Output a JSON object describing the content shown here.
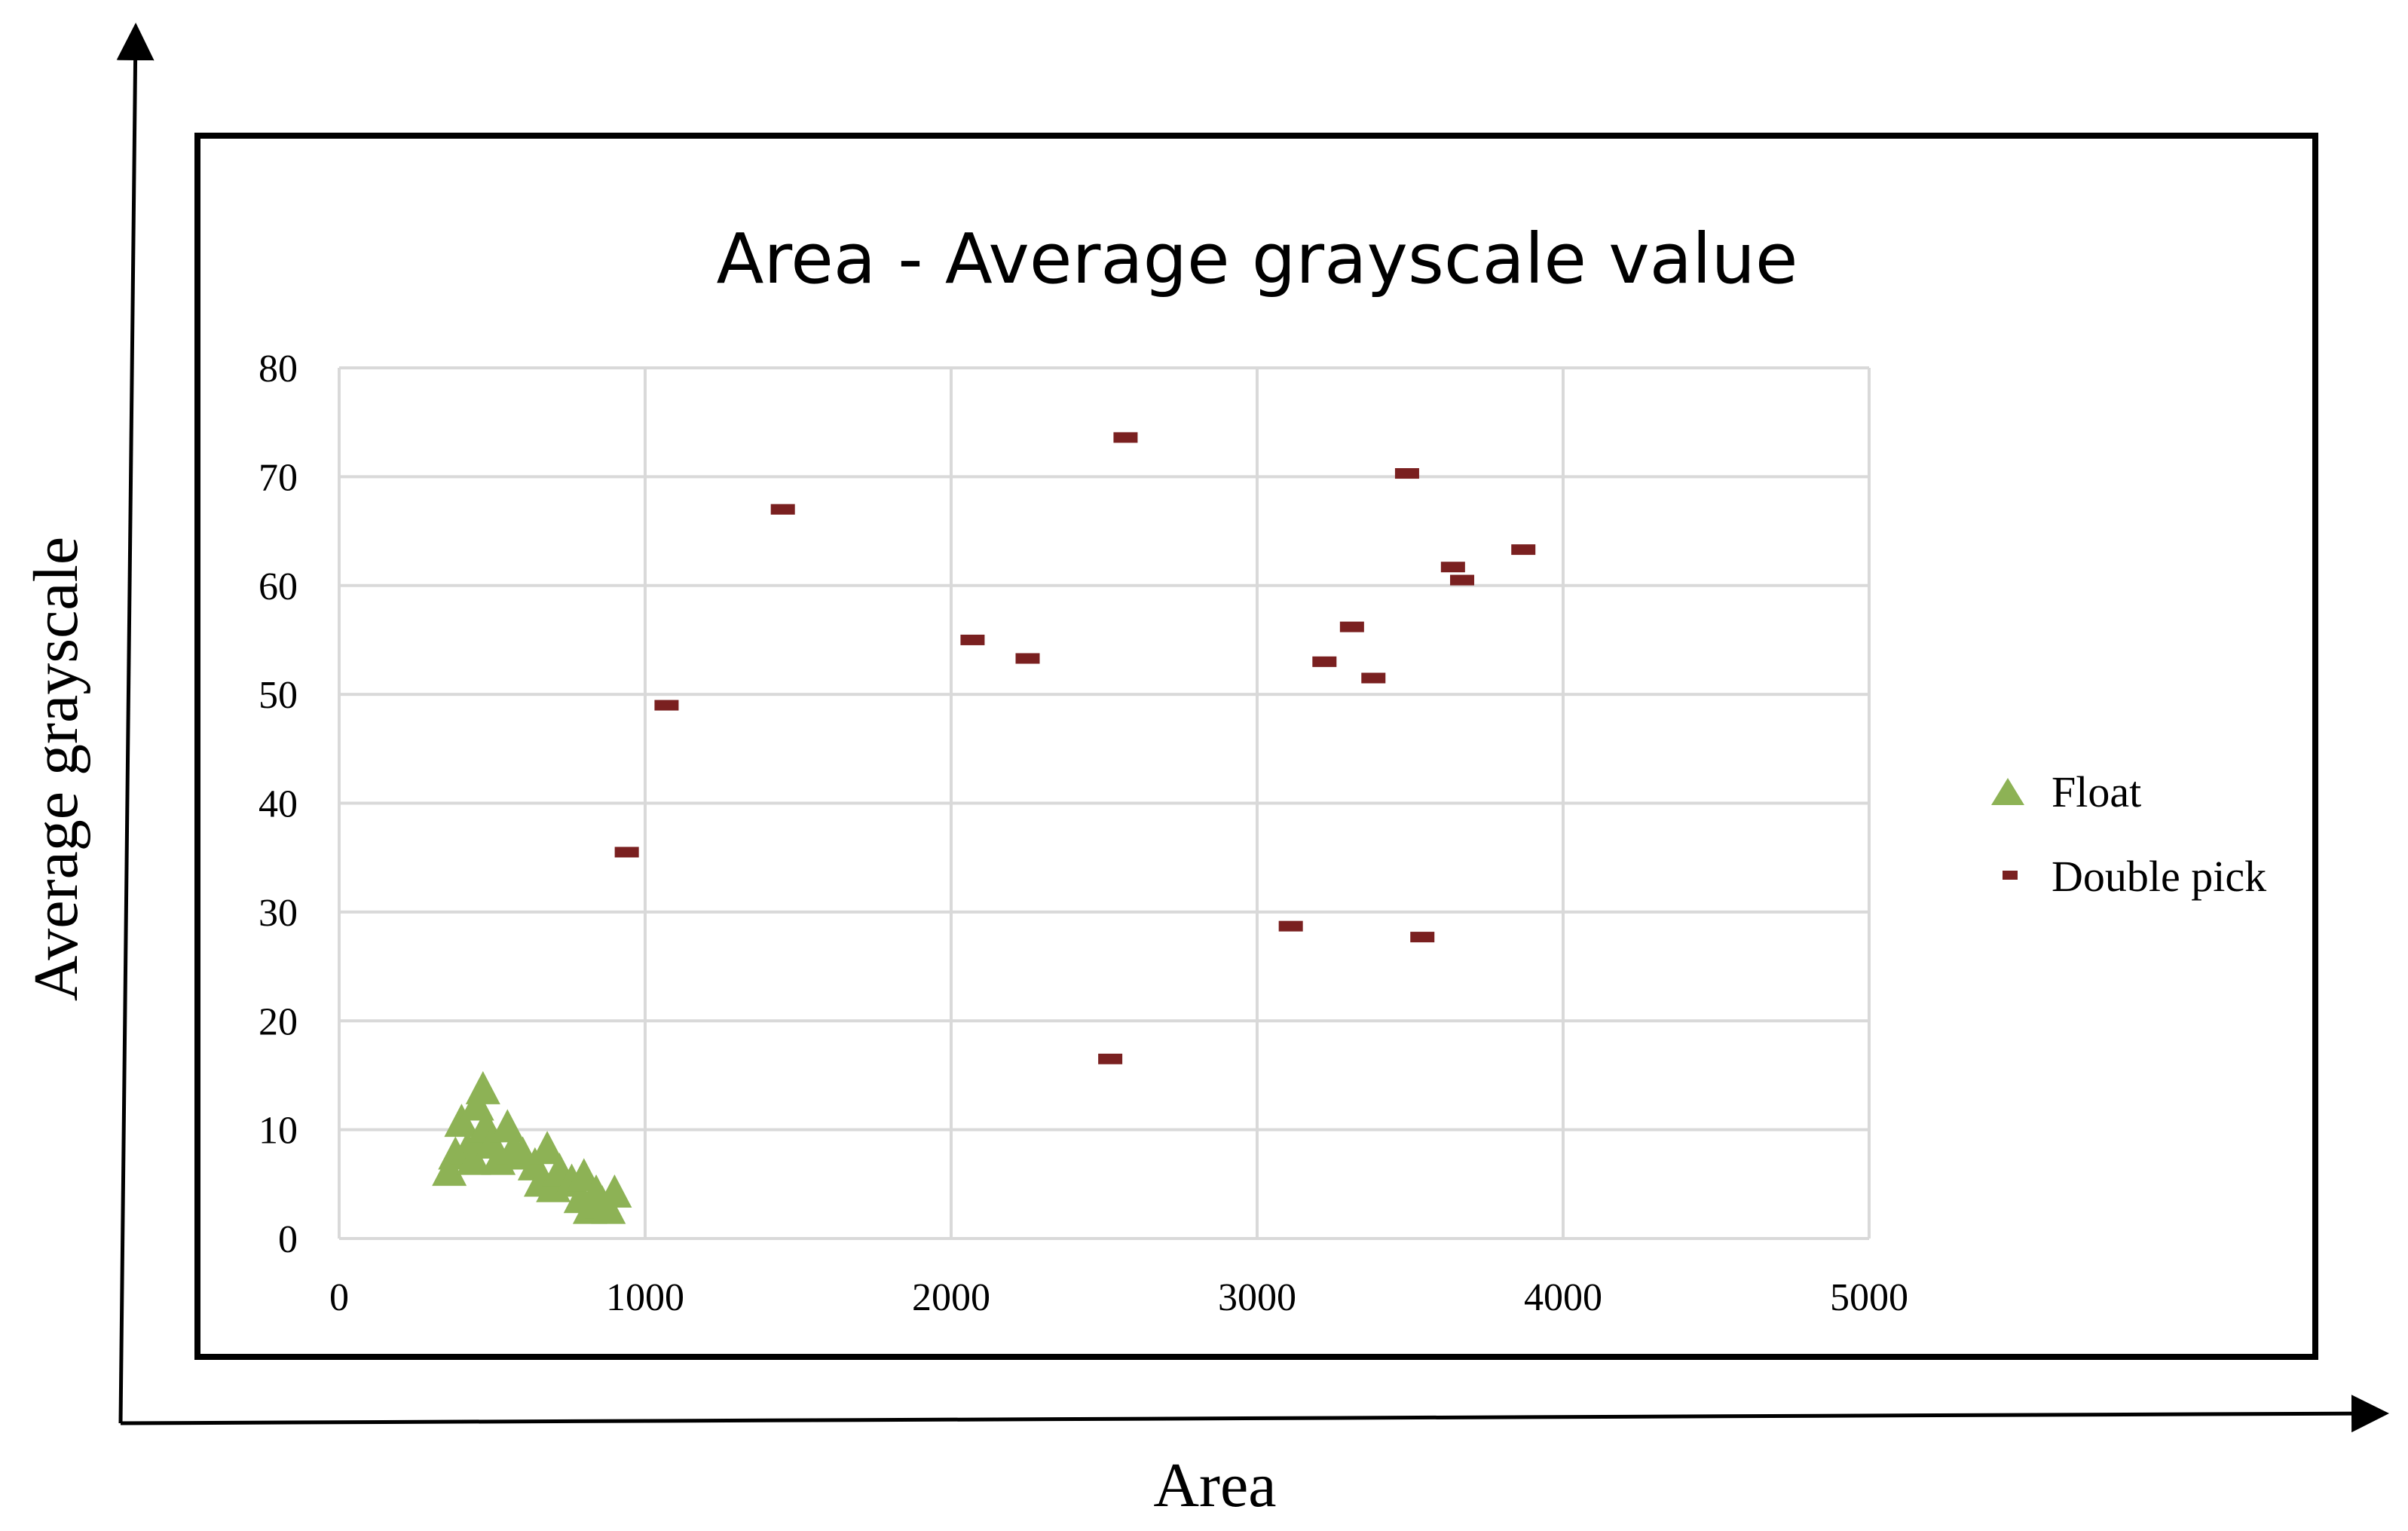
{
  "chart_data": {
    "type": "scatter",
    "title": "Area - Average grayscale value",
    "xlabel": "Area",
    "ylabel": "Average grayscale",
    "xlim": [
      0,
      5000
    ],
    "ylim": [
      0,
      80
    ],
    "x_ticks": [
      "0",
      "1000",
      "2000",
      "3000",
      "4000",
      "5000"
    ],
    "y_ticks": [
      "0",
      "10",
      "20",
      "30",
      "40",
      "50",
      "60",
      "70",
      "80"
    ],
    "grid": true,
    "legend_position": "right",
    "series": [
      {
        "name": "Float",
        "marker": "triangle",
        "color": "#8db255",
        "points": [
          [
            360,
            6
          ],
          [
            380,
            7.5
          ],
          [
            400,
            10.5
          ],
          [
            420,
            8
          ],
          [
            440,
            7
          ],
          [
            450,
            12
          ],
          [
            460,
            9
          ],
          [
            470,
            13.5
          ],
          [
            480,
            10
          ],
          [
            500,
            8.5
          ],
          [
            520,
            7
          ],
          [
            550,
            10
          ],
          [
            570,
            8
          ],
          [
            600,
            7.5
          ],
          [
            640,
            6.5
          ],
          [
            660,
            5
          ],
          [
            680,
            8
          ],
          [
            700,
            4.5
          ],
          [
            720,
            6
          ],
          [
            760,
            5
          ],
          [
            790,
            3.5
          ],
          [
            800,
            5.5
          ],
          [
            820,
            2.5
          ],
          [
            840,
            4
          ],
          [
            860,
            3
          ],
          [
            880,
            2.5
          ],
          [
            900,
            4
          ]
        ]
      },
      {
        "name": "Double pick",
        "marker": "dash",
        "color": "#7a2020",
        "points": [
          [
            940,
            35.5
          ],
          [
            1070,
            49
          ],
          [
            1450,
            67
          ],
          [
            2070,
            55
          ],
          [
            2250,
            53.3
          ],
          [
            2520,
            16.5
          ],
          [
            2570,
            73.6
          ],
          [
            3110,
            28.7
          ],
          [
            3220,
            53
          ],
          [
            3310,
            56.2
          ],
          [
            3380,
            51.5
          ],
          [
            3490,
            70.3
          ],
          [
            3540,
            27.7
          ],
          [
            3640,
            61.7
          ],
          [
            3670,
            60.5
          ],
          [
            3870,
            63.3
          ]
        ]
      }
    ]
  }
}
